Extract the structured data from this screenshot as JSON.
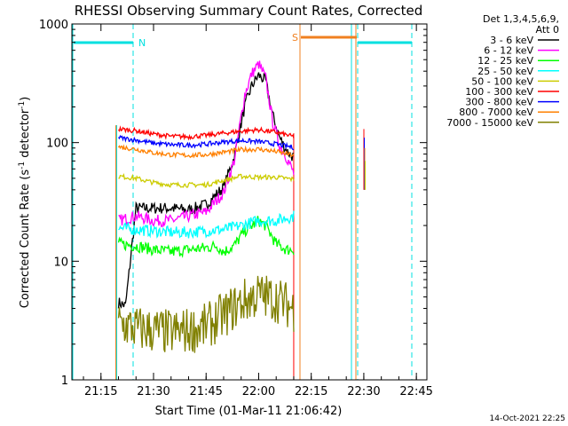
{
  "chart_data": {
    "type": "line",
    "title": "RHESSI Observing Summary Count Rates, Corrected",
    "xlabel": "Start Time (01-Mar-11 21:06:42)",
    "ylabel": "Corrected Count Rate (s",
    "ylabel_sup1": "-1",
    "ylabel_mid": " detector",
    "ylabel_sup2": "-1",
    "ylabel_end": ")",
    "y_scale": "log",
    "ylim": [
      1,
      1000
    ],
    "xlim": [
      "21:06:42",
      "22:48:00"
    ],
    "x_ticks": [
      "21:15",
      "21:30",
      "21:45",
      "22:00",
      "22:15",
      "22:30",
      "22:45"
    ],
    "y_ticks": [
      "1",
      "10",
      "100",
      "1000"
    ],
    "detectors": "Det 1,3,4,5,6,9,",
    "attenuator": "Att 0",
    "timestamp": "14-Oct-2021 22:25",
    "grid": false,
    "legend_position": "top-right outside",
    "attenuator_color": "#00e0e0",
    "saa_color": "#f08020",
    "night_label": "N",
    "saa_label": "S",
    "data_window": [
      "21:19:30",
      "22:10:00"
    ],
    "series": [
      {
        "name": "3 - 6 keV",
        "color": "#000000",
        "x": [
          "21:20",
          "21:22",
          "21:25",
          "21:30",
          "21:35",
          "21:40",
          "21:45",
          "21:50",
          "21:53",
          "21:56",
          "21:58",
          "22:00",
          "22:02",
          "22:04",
          "22:06",
          "22:08",
          "22:10"
        ],
        "y": [
          4.5,
          4.2,
          28,
          28,
          28,
          27,
          30,
          42,
          75,
          200,
          300,
          370,
          330,
          170,
          110,
          85,
          75
        ]
      },
      {
        "name": "6 - 12 keV",
        "color": "#ff00ff",
        "x": [
          "21:20",
          "21:25",
          "21:30",
          "21:35",
          "21:40",
          "21:45",
          "21:50",
          "21:53",
          "21:56",
          "21:58",
          "22:00",
          "22:02",
          "22:04",
          "22:06",
          "22:08",
          "22:10"
        ],
        "y": [
          22,
          24,
          22,
          22,
          24,
          26,
          38,
          70,
          250,
          380,
          460,
          350,
          150,
          95,
          75,
          55
        ]
      },
      {
        "name": "12 - 25 keV",
        "color": "#00ff00",
        "x": [
          "21:20",
          "21:25",
          "21:30",
          "21:35",
          "21:40",
          "21:45",
          "21:48",
          "21:50",
          "21:53",
          "21:56",
          "22:00",
          "22:02",
          "22:05",
          "22:08",
          "22:10"
        ],
        "y": [
          14,
          13.5,
          12.5,
          12,
          12.5,
          13,
          13.5,
          12,
          13.5,
          18,
          22,
          20,
          14,
          12.5,
          12.5
        ]
      },
      {
        "name": "25 - 50 keV",
        "color": "#00ffff",
        "x": [
          "21:20",
          "21:25",
          "21:30",
          "21:35",
          "21:40",
          "21:45",
          "21:50",
          "21:55",
          "22:00",
          "22:05",
          "22:10"
        ],
        "y": [
          19,
          18.5,
          18,
          17.5,
          17.5,
          18,
          18.5,
          20,
          22,
          22,
          24
        ]
      },
      {
        "name": "50 - 100 keV",
        "color": "#cccc00",
        "x": [
          "21:20",
          "21:25",
          "21:30",
          "21:35",
          "21:40",
          "21:45",
          "21:50",
          "21:55",
          "22:00",
          "22:05",
          "22:10"
        ],
        "y": [
          52,
          50,
          46,
          44,
          44,
          44,
          48,
          52,
          51,
          51,
          49
        ]
      },
      {
        "name": "100 - 300 keV",
        "color": "#ff0000",
        "x": [
          "21:20",
          "21:25",
          "21:30",
          "21:35",
          "21:40",
          "21:45",
          "21:50",
          "21:55",
          "22:00",
          "22:05",
          "22:10"
        ],
        "y": [
          130,
          126,
          118,
          113,
          112,
          115,
          120,
          125,
          128,
          122,
          112
        ]
      },
      {
        "name": "300 - 800 keV",
        "color": "#0000ff",
        "x": [
          "21:20",
          "21:25",
          "21:30",
          "21:35",
          "21:40",
          "21:45",
          "21:50",
          "21:55",
          "22:00",
          "22:05",
          "22:10"
        ],
        "y": [
          110,
          105,
          99,
          96,
          95,
          97,
          101,
          104,
          102,
          97,
          91
        ]
      },
      {
        "name": "800 - 7000 keV",
        "color": "#ff8000",
        "x": [
          "21:20",
          "21:25",
          "21:30",
          "21:35",
          "21:40",
          "21:45",
          "21:50",
          "21:55",
          "22:00",
          "22:05",
          "22:10"
        ],
        "y": [
          92,
          88,
          82,
          79,
          78,
          79,
          83,
          87,
          88,
          84,
          78
        ]
      },
      {
        "name": "7000 - 15000 keV",
        "color": "#808000",
        "x": [
          "21:20",
          "21:25",
          "21:30",
          "21:35",
          "21:40",
          "21:45",
          "21:50",
          "21:55",
          "22:00",
          "22:05",
          "22:10"
        ],
        "y": [
          3,
          2.7,
          2.6,
          2.5,
          2.6,
          2.8,
          3.5,
          4.5,
          5.2,
          4.8,
          4
        ]
      }
    ]
  }
}
